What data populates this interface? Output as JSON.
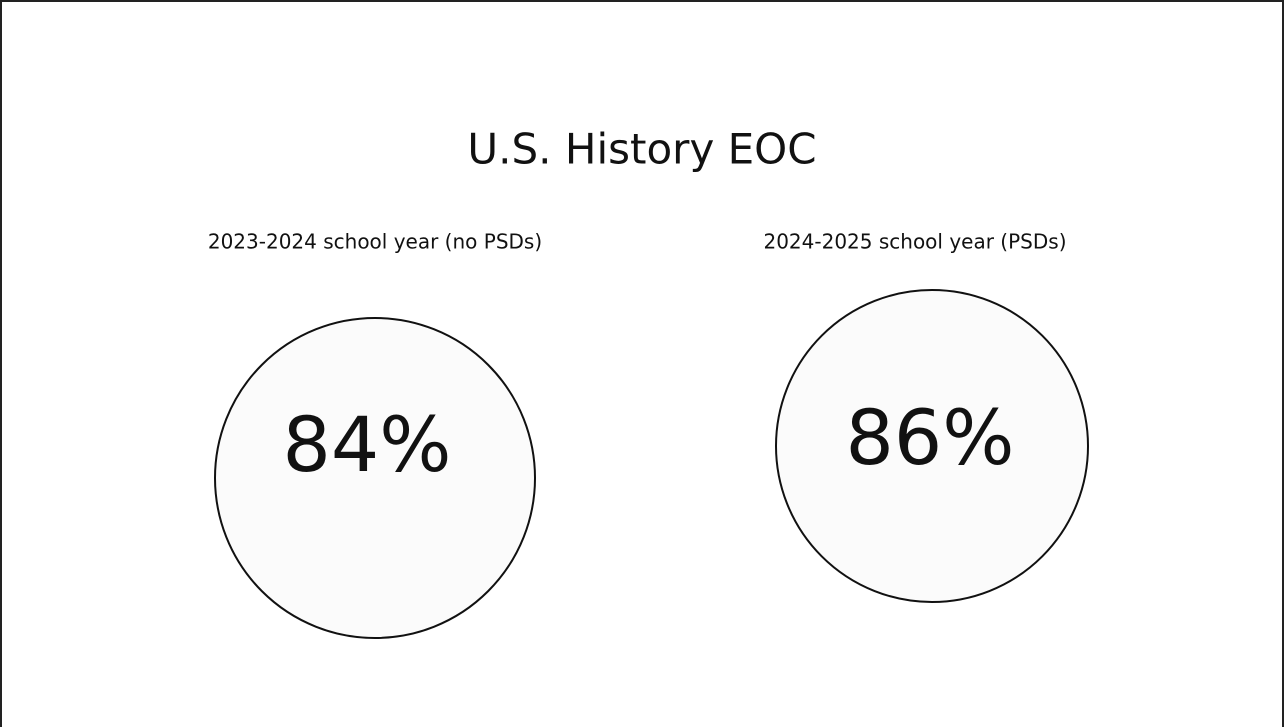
{
  "title": "U.S. History EOC",
  "panels": [
    {
      "label": "2023-2024 school year (no PSDs)",
      "value": "84%"
    },
    {
      "label": "2024-2025 school year (PSDs)",
      "value": "86%"
    }
  ]
}
